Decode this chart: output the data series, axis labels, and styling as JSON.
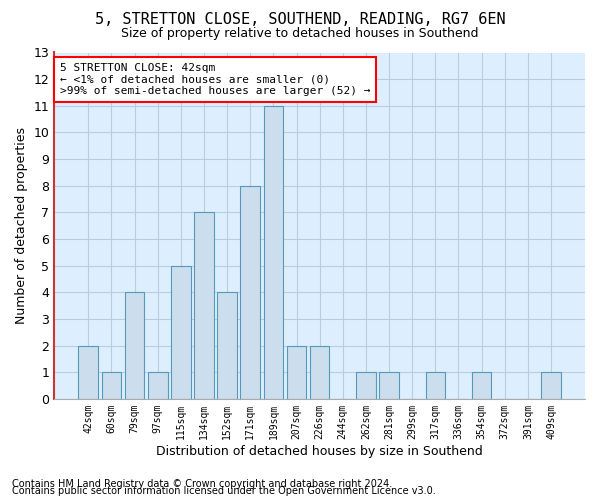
{
  "title": "5, STRETTON CLOSE, SOUTHEND, READING, RG7 6EN",
  "subtitle": "Size of property relative to detached houses in Southend",
  "xlabel": "Distribution of detached houses by size in Southend",
  "ylabel": "Number of detached properties",
  "footnote1": "Contains HM Land Registry data © Crown copyright and database right 2024.",
  "footnote2": "Contains public sector information licensed under the Open Government Licence v3.0.",
  "categories": [
    "42sqm",
    "60sqm",
    "79sqm",
    "97sqm",
    "115sqm",
    "134sqm",
    "152sqm",
    "171sqm",
    "189sqm",
    "207sqm",
    "226sqm",
    "244sqm",
    "262sqm",
    "281sqm",
    "299sqm",
    "317sqm",
    "336sqm",
    "354sqm",
    "372sqm",
    "391sqm",
    "409sqm"
  ],
  "values": [
    2,
    1,
    4,
    1,
    5,
    7,
    4,
    8,
    11,
    2,
    2,
    0,
    1,
    1,
    0,
    1,
    0,
    1,
    0,
    0,
    1
  ],
  "bar_color": "#ccdded",
  "bar_edge_color": "#5599bb",
  "ylim": [
    0,
    13
  ],
  "yticks": [
    0,
    1,
    2,
    3,
    4,
    5,
    6,
    7,
    8,
    9,
    10,
    11,
    12,
    13
  ],
  "grid_color": "#bbccdd",
  "bg_color": "#ddeeff",
  "left_spine_color": "#cc3333",
  "annotation_text": "5 STRETTON CLOSE: 42sqm\n← <1% of detached houses are smaller (0)\n>99% of semi-detached houses are larger (52) →",
  "title_fontsize": 11,
  "subtitle_fontsize": 9,
  "ylabel_fontsize": 9,
  "xlabel_fontsize": 9,
  "footnote_fontsize": 7
}
